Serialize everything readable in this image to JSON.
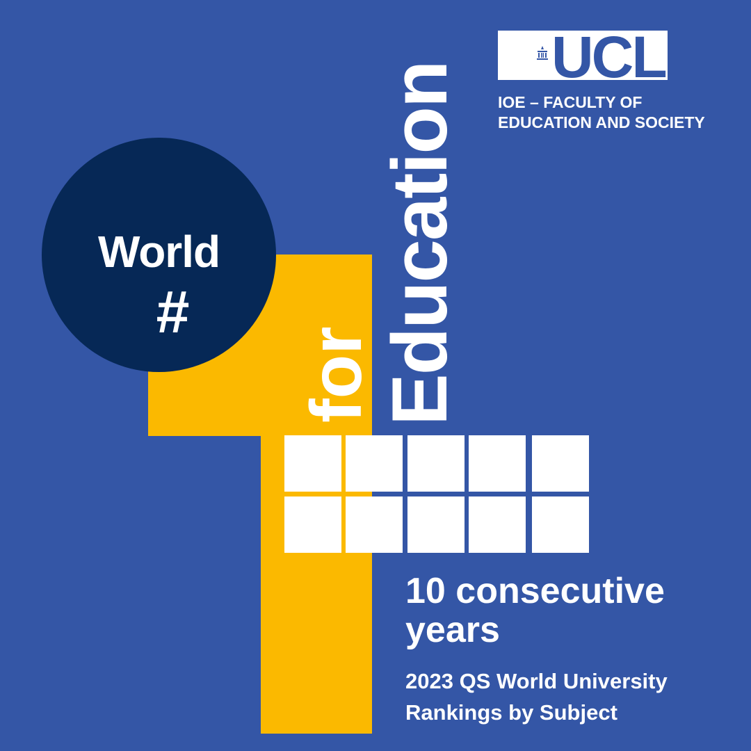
{
  "colors": {
    "background": "#3456a6",
    "yellow": "#fbb900",
    "navy": "#062856",
    "white": "#ffffff"
  },
  "logo": {
    "name": "UCL",
    "icon": "portico-building-icon",
    "faculty_line1": "IOE – FACULTY OF",
    "faculty_line2": "EDUCATION AND SOCIETY"
  },
  "badge": {
    "line1": "World",
    "line2": "#"
  },
  "rank_numeral": "1",
  "vertical": {
    "for": "for",
    "education": "Education"
  },
  "years_squares": 10,
  "headline": {
    "line1": "10 consecutive",
    "line2": "years"
  },
  "source": {
    "line1": "2023 QS World University",
    "line2": "Rankings by Subject"
  }
}
